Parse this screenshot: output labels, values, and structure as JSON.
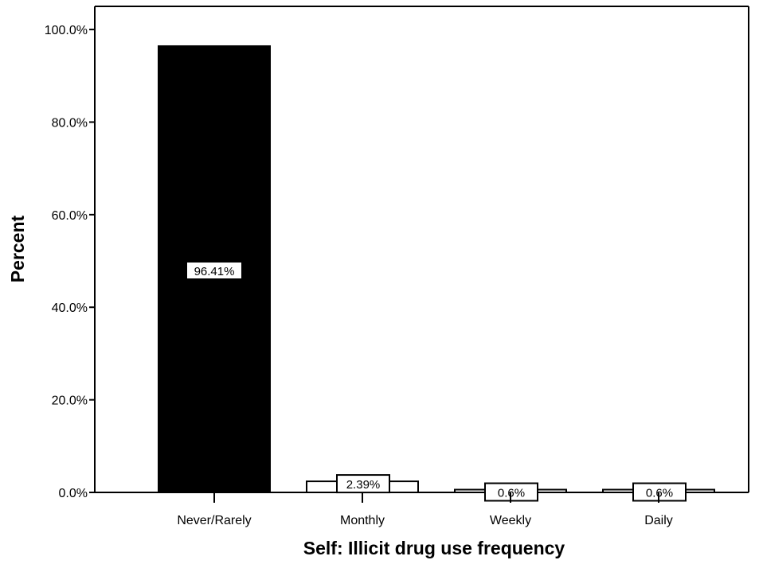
{
  "chart_data": {
    "type": "bar",
    "title": "",
    "xlabel": "Self: Illicit drug use frequency",
    "ylabel": "Percent",
    "categories": [
      "Never/Rarely",
      "Monthly",
      "Weekly",
      "Daily"
    ],
    "values": [
      96.41,
      2.39,
      0.6,
      0.6
    ],
    "data_labels": [
      "96.41%",
      "2.39%",
      "0.6%",
      "0.6%"
    ],
    "ylim": [
      0,
      105
    ],
    "yticks": [
      0,
      20,
      40,
      60,
      80,
      100
    ],
    "ytick_labels": [
      "0.0%",
      "20.0%",
      "40.0%",
      "60.0%",
      "80.0%",
      "100.0%"
    ],
    "grid": false,
    "colors": {
      "highlight_fill": "#000000",
      "other_fill": "#ffffff",
      "stroke": "#000000",
      "background": "#ffffff"
    }
  }
}
